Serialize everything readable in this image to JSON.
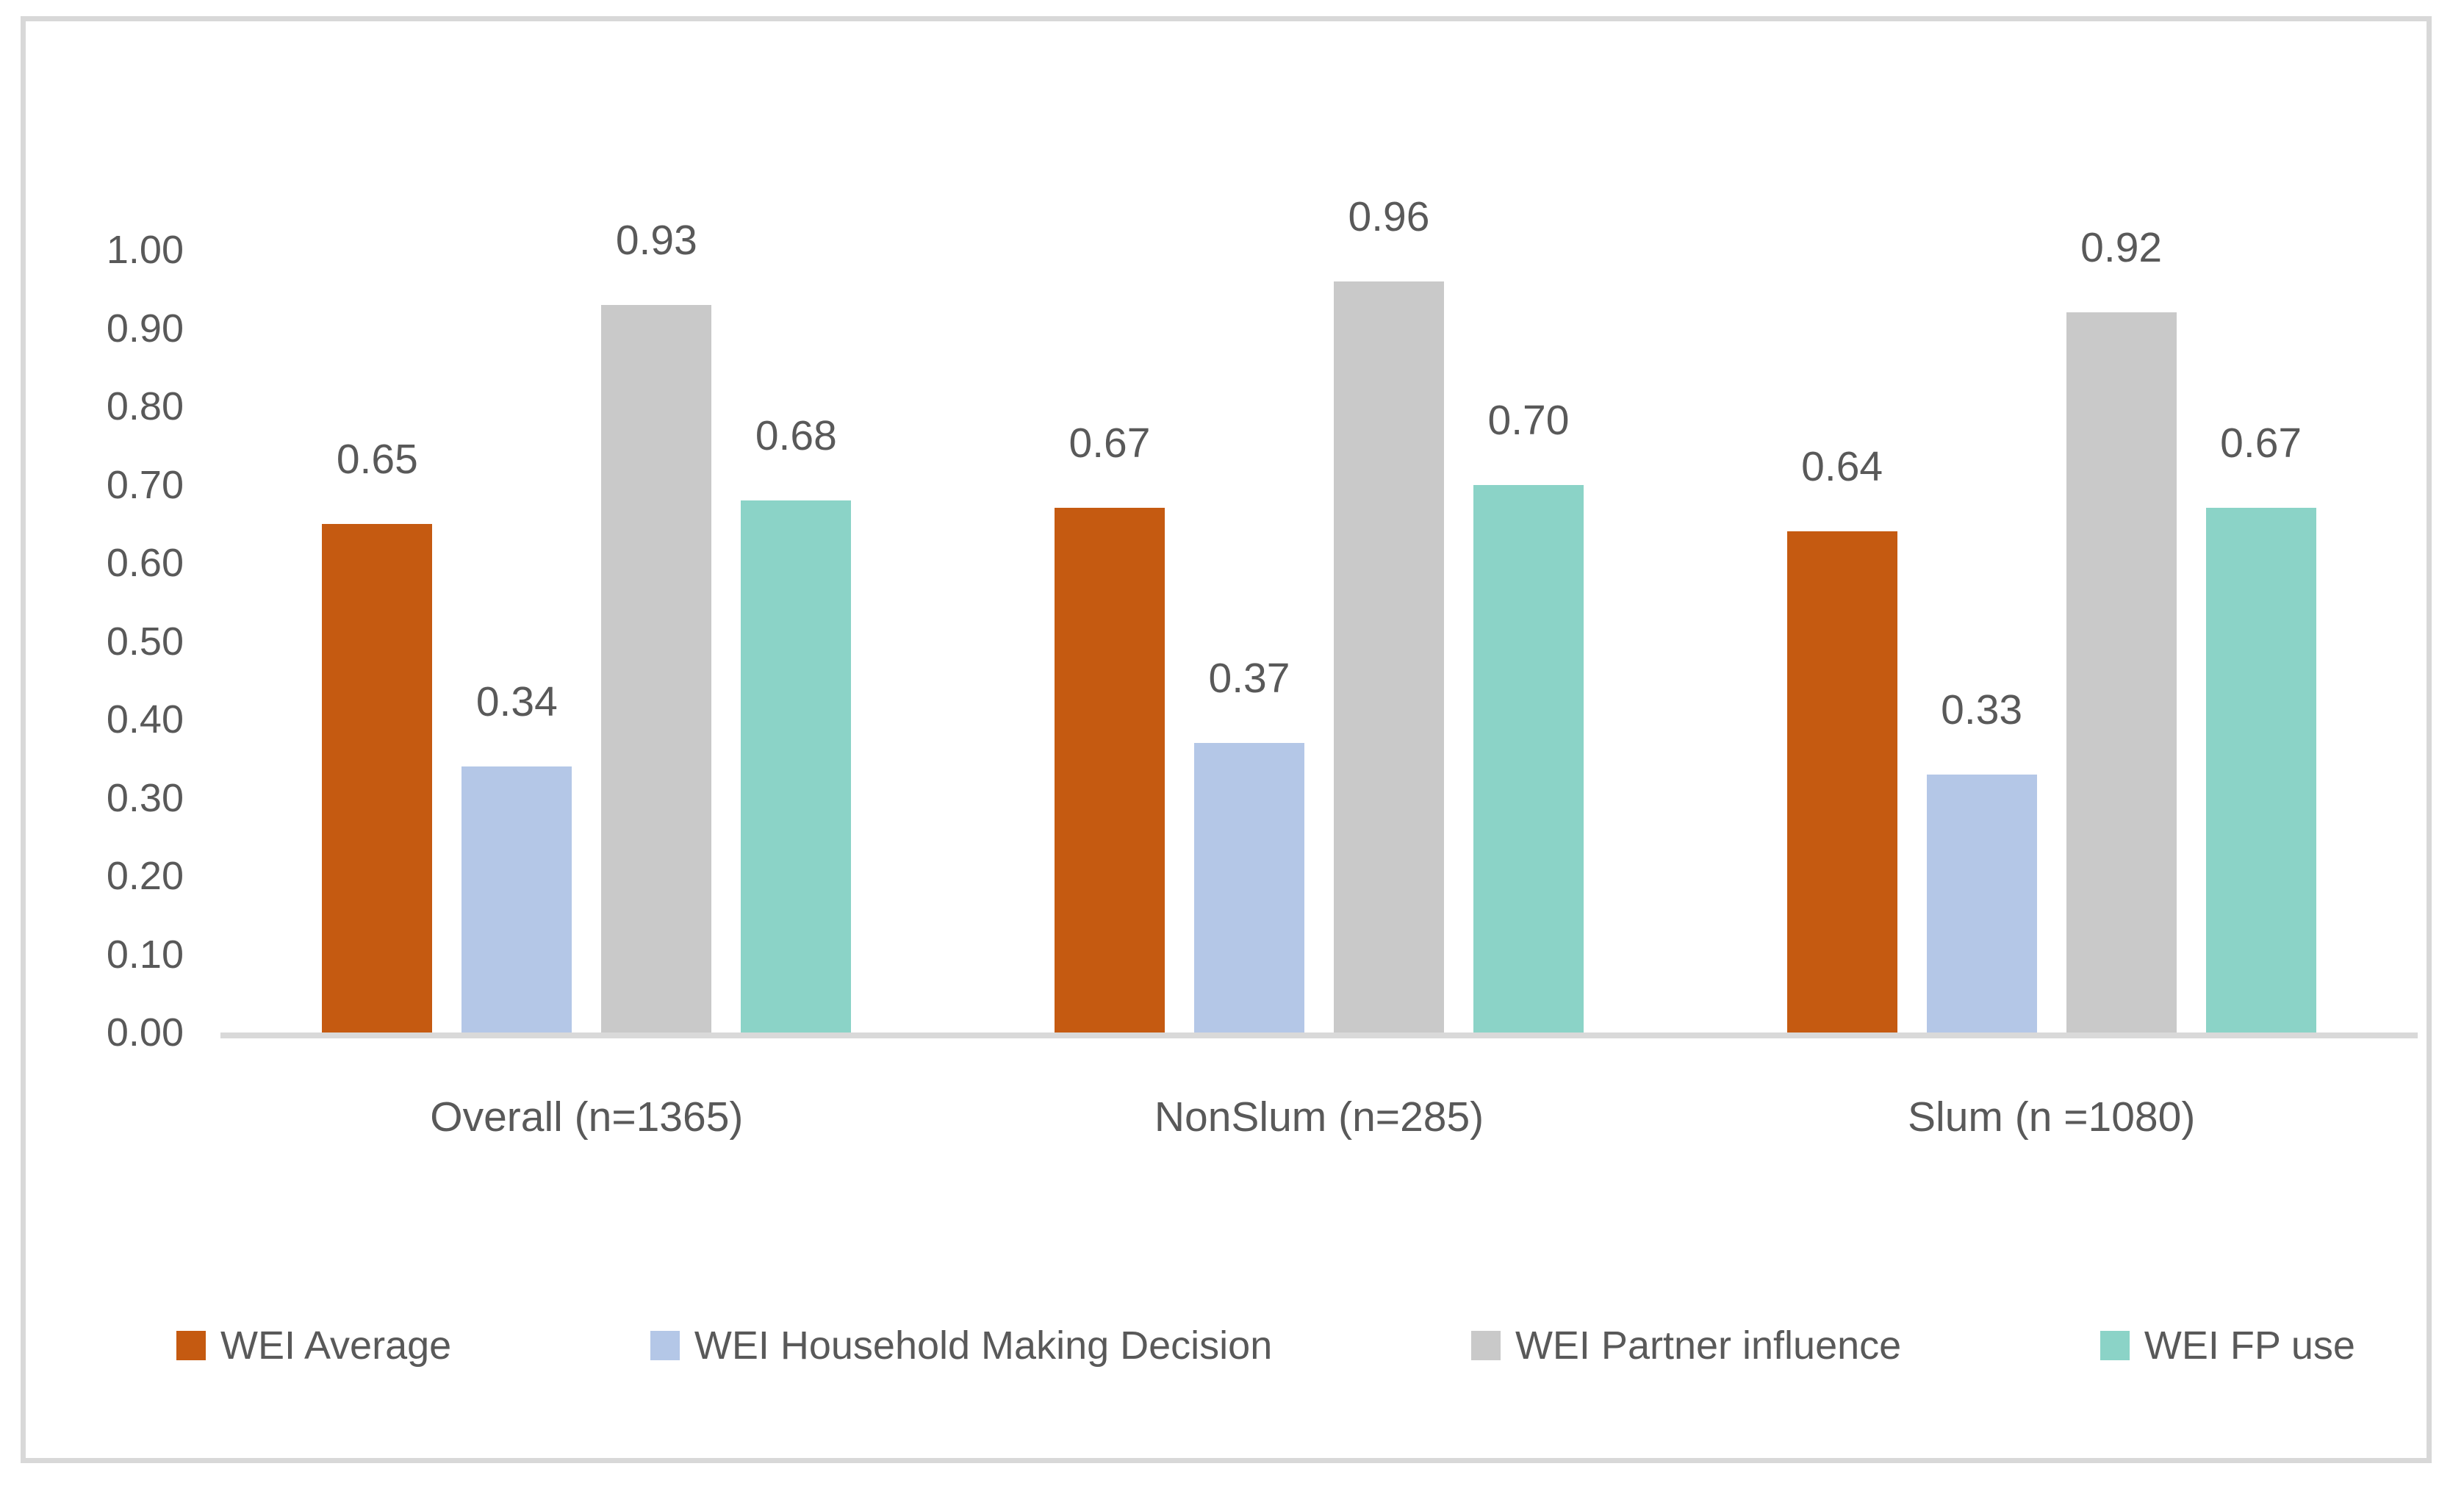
{
  "figure": {
    "background": "#FFFFFF",
    "border_color": "#D8D8D8",
    "axis_color": "#D9D9D9",
    "text_color": "#595959"
  },
  "chart_data": {
    "type": "bar",
    "title": "",
    "categories": [
      "Overall (n=1365)",
      "NonSlum (n=285)",
      "Slum (n =1080)"
    ],
    "series": [
      {
        "name": "WEI Average",
        "color": "#C55A11",
        "values": [
          0.65,
          0.67,
          0.64
        ],
        "labels": [
          "0.65",
          "0.67",
          "0.64"
        ]
      },
      {
        "name": "WEI Household Making Decision",
        "color": "#B4C7E7",
        "values": [
          0.34,
          0.37,
          0.33
        ],
        "labels": [
          "0.34",
          "0.37",
          "0.33"
        ]
      },
      {
        "name": "WEI Partner influence",
        "color": "#C9C9C9",
        "values": [
          0.93,
          0.96,
          0.92
        ],
        "labels": [
          "0.93",
          "0.96",
          "0.92"
        ]
      },
      {
        "name": "WEI FP use",
        "color": "#8BD3C7",
        "values": [
          0.68,
          0.7,
          0.67
        ],
        "labels": [
          "0.68",
          "0.70",
          "0.67"
        ]
      }
    ],
    "yticks": [
      {
        "value": 1.0,
        "label": "1.00"
      },
      {
        "value": 0.9,
        "label": "0.90"
      },
      {
        "value": 0.8,
        "label": "0.80"
      },
      {
        "value": 0.7,
        "label": "0.70"
      },
      {
        "value": 0.6,
        "label": "0.60"
      },
      {
        "value": 0.5,
        "label": "0.50"
      },
      {
        "value": 0.4,
        "label": "0.40"
      },
      {
        "value": 0.3,
        "label": "0.30"
      },
      {
        "value": 0.2,
        "label": "0.20"
      },
      {
        "value": 0.1,
        "label": "0.10"
      },
      {
        "value": 0.0,
        "label": "0.00"
      }
    ],
    "ylim": [
      0,
      1
    ],
    "grid": false,
    "legend_position": "bottom",
    "legend": [
      "WEI Average",
      "WEI Household Making Decision",
      "WEI Partner influence",
      "WEI FP use"
    ]
  }
}
